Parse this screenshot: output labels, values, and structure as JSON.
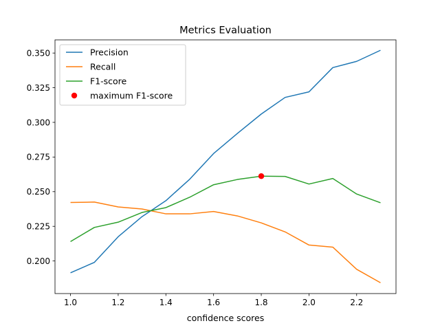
{
  "chart_data": {
    "type": "line",
    "title": "Metrics Evaluation",
    "xlabel": "confidence scores",
    "ylabel": "",
    "x": [
      1.0,
      1.1,
      1.2,
      1.3,
      1.4,
      1.5,
      1.6,
      1.7,
      1.8,
      1.9,
      2.0,
      2.1,
      2.2,
      2.3
    ],
    "xlim": [
      0.935,
      2.365
    ],
    "ylim": [
      0.1765,
      0.3595
    ],
    "xticks": [
      1.0,
      1.2,
      1.4,
      1.6,
      1.8,
      2.0,
      2.2
    ],
    "yticks": [
      0.2,
      0.225,
      0.25,
      0.275,
      0.3,
      0.325,
      0.35
    ],
    "xtick_labels": [
      "1.0",
      "1.2",
      "1.4",
      "1.6",
      "1.8",
      "2.0",
      "2.2"
    ],
    "ytick_labels": [
      "0.200",
      "0.225",
      "0.250",
      "0.275",
      "0.300",
      "0.325",
      "0.350"
    ],
    "grid": false,
    "legend_position": "top-left",
    "series": [
      {
        "name": "Precision",
        "color": "#1f77b4",
        "values": [
          0.1915,
          0.199,
          0.2175,
          0.232,
          0.2435,
          0.259,
          0.2775,
          0.292,
          0.306,
          0.318,
          0.322,
          0.3395,
          0.344,
          0.352
        ]
      },
      {
        "name": "Recall",
        "color": "#ff7f0e",
        "values": [
          0.2422,
          0.2425,
          0.239,
          0.2375,
          0.234,
          0.234,
          0.2357,
          0.2325,
          0.2275,
          0.221,
          0.2115,
          0.21,
          0.194,
          0.1843
        ]
      },
      {
        "name": "F1-score",
        "color": "#2ca02c",
        "values": [
          0.214,
          0.2242,
          0.228,
          0.235,
          0.2385,
          0.246,
          0.255,
          0.2588,
          0.2612,
          0.261,
          0.2555,
          0.2595,
          0.2483,
          0.242
        ]
      }
    ],
    "marker": {
      "name": "maximum F1-score",
      "color": "#ff0000",
      "x": 1.8,
      "y": 0.2612
    }
  }
}
